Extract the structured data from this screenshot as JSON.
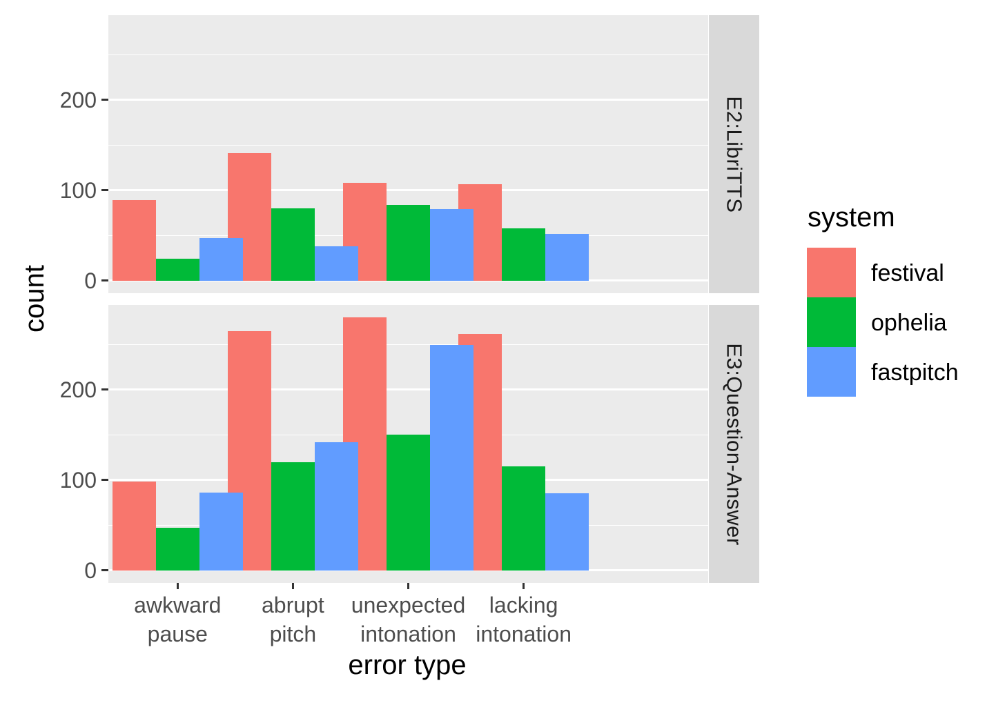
{
  "figure": {
    "y_axis_title": "count",
    "x_axis_title": "error type",
    "background": "#FFFFFF",
    "panel_background": "#EBEBEB",
    "strip_background": "#D9D9D9",
    "grid_color": "#FFFFFF",
    "axis_text_color": "#4D4D4D",
    "tick_mark_color": "#333333"
  },
  "legend": {
    "title": "system",
    "position": "right",
    "items": [
      {
        "label": "festival",
        "color": "#F8766D"
      },
      {
        "label": "ophelia",
        "color": "#00BA38"
      },
      {
        "label": "fastpitch",
        "color": "#619CFF"
      }
    ]
  },
  "chart_data": {
    "type": "bar",
    "grouped": true,
    "dodge": true,
    "title": "",
    "xlabel": "error type",
    "ylabel": "count",
    "legend_title": "system",
    "legend_position": "right",
    "grid": true,
    "categories": [
      "awkward pause",
      "abrupt pitch",
      "unexpected intonation",
      "lacking intonation"
    ],
    "x_tick_lines": [
      [
        "awkward",
        "pause"
      ],
      [
        "abrupt",
        "pitch"
      ],
      [
        "unexpected",
        "intonation"
      ],
      [
        "lacking",
        "intonation"
      ]
    ],
    "y_ticks": [
      0,
      100,
      200
    ],
    "y_minor_ticks": [
      50,
      150,
      250
    ],
    "ylim": [
      -14,
      294
    ],
    "facets": [
      {
        "label": "E2:LibriTTS",
        "series": [
          {
            "name": "festival",
            "values": [
              89,
              141,
              108,
              107
            ]
          },
          {
            "name": "ophelia",
            "values": [
              24,
              80,
              84,
              58
            ]
          },
          {
            "name": "fastpitch",
            "values": [
              47,
              38,
              79,
              52
            ]
          }
        ]
      },
      {
        "label": "E3:Question-Answer",
        "series": [
          {
            "name": "festival",
            "values": [
              98,
              265,
              280,
              262
            ]
          },
          {
            "name": "ophelia",
            "values": [
              47,
              120,
              150,
              115
            ]
          },
          {
            "name": "fastpitch",
            "values": [
              86,
              142,
              250,
              85
            ]
          }
        ]
      }
    ]
  }
}
